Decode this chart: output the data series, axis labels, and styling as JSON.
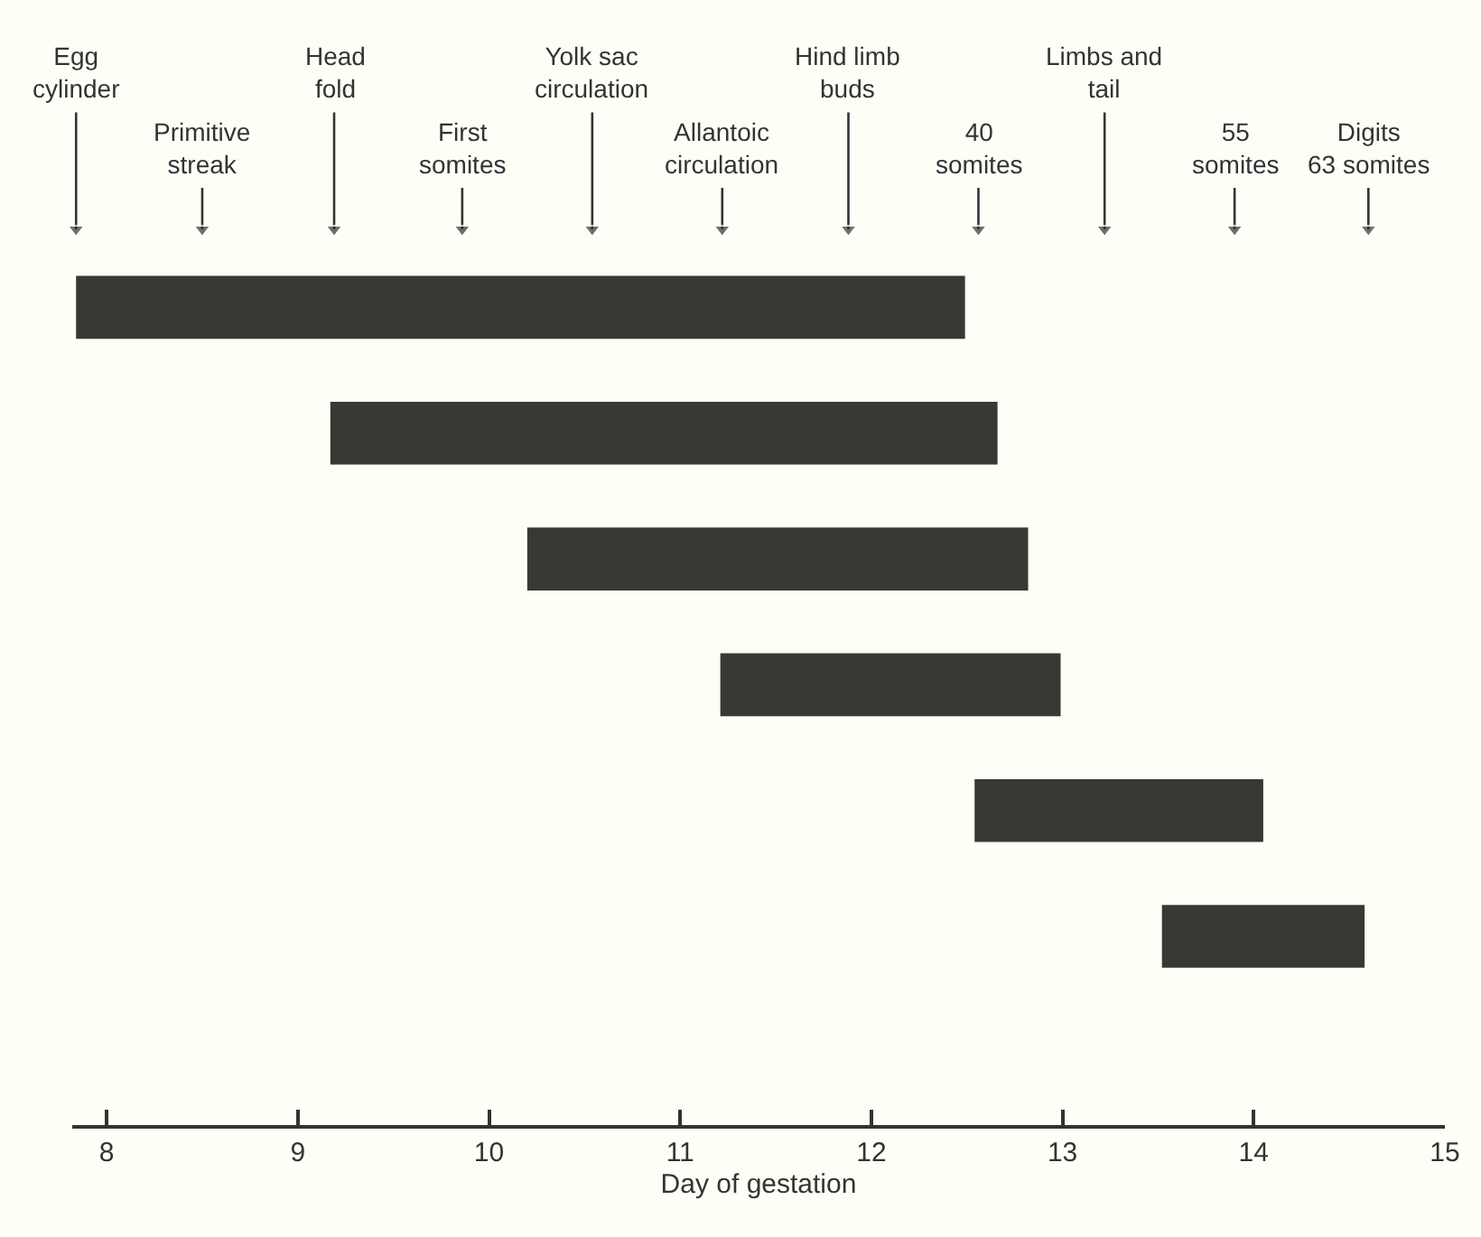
{
  "chart_data": {
    "type": "bar",
    "orientation": "horizontal",
    "xlabel": "Day of gestation",
    "categories": [
      null,
      null,
      null,
      null,
      null,
      null
    ],
    "base": [
      7.84,
      9.17,
      10.2,
      11.21,
      12.54,
      13.52
    ],
    "values": [
      4.65,
      3.49,
      2.62,
      1.78,
      1.51,
      1.06
    ],
    "color": "#383834",
    "xlim": [
      7.82,
      15
    ],
    "xticks": [
      8,
      9,
      10,
      11,
      12,
      13,
      14,
      15
    ],
    "ref_lines": [
      {
        "axis": "x",
        "label": "Egg cylinder",
        "value": 7.84
      },
      {
        "axis": "x",
        "label": "Head fold",
        "value": 9.19
      },
      {
        "axis": "x",
        "label": "Yolk sac circulation",
        "value": 10.54
      },
      {
        "axis": "x",
        "label": "Hind limb buds",
        "value": 11.88
      },
      {
        "axis": "x",
        "label": "Limbs and tail",
        "value": 13.22
      },
      {
        "axis": "x",
        "label": "Primitive streak",
        "value": 8.5
      },
      {
        "axis": "x",
        "label": "First somites",
        "value": 9.86
      },
      {
        "axis": "x",
        "label": "Allantoic circulation",
        "value": 11.22
      },
      {
        "axis": "x",
        "label": "40 somites",
        "value": 12.56
      },
      {
        "axis": "x",
        "label": "55 somites",
        "value": 13.9
      },
      {
        "axis": "x",
        "label": "Digits 63 somites",
        "value": 14.6
      }
    ]
  }
}
